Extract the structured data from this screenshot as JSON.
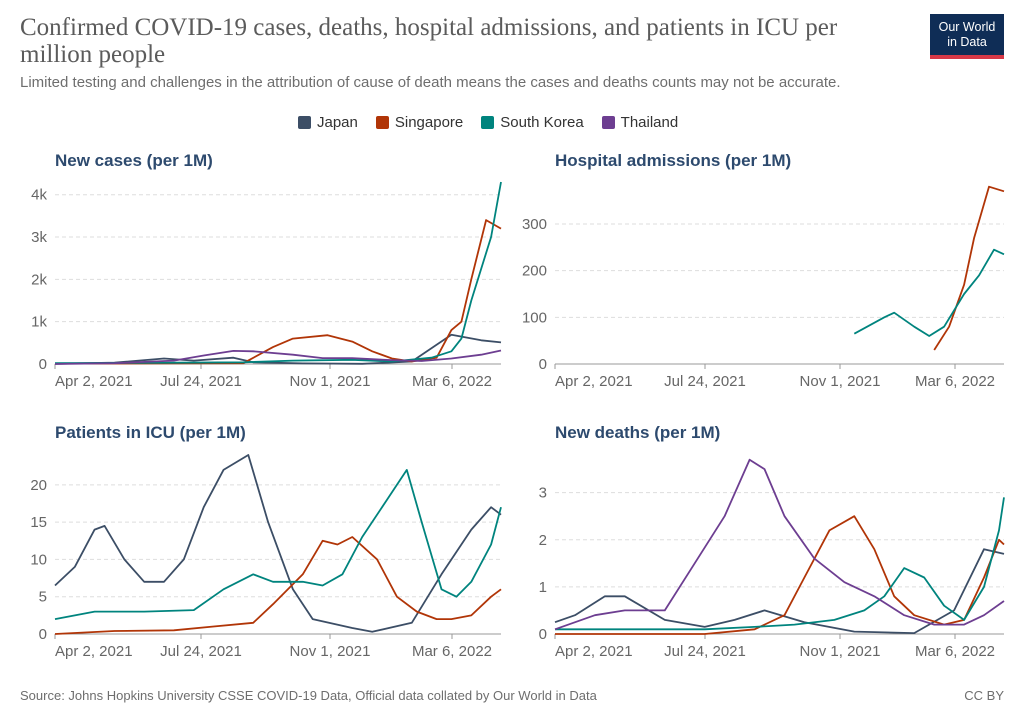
{
  "title": "Confirmed COVID-19 cases, deaths, hospital admissions, and patients in ICU per million people",
  "subtitle": "Limited testing and challenges in the attribution of cause of death means the cases and deaths counts may not be accurate.",
  "logo": {
    "line1": "Our World",
    "line2": "in Data"
  },
  "legend": [
    {
      "name": "Japan",
      "color": "#3c4e66"
    },
    {
      "name": "Singapore",
      "color": "#b13507"
    },
    {
      "name": "South Korea",
      "color": "#00847e"
    },
    {
      "name": "Thailand",
      "color": "#6d3e91"
    }
  ],
  "footer": {
    "source": "Source: Johns Hopkins University CSSE COVID-19 Data, Official data collated by Our World in Data",
    "license": "CC BY"
  },
  "chart_data": [
    {
      "type": "line",
      "title": "New cases (per 1M)",
      "x_ticks": [
        "Apr 2, 2021",
        "Jul 24, 2021",
        "Nov 1, 2021",
        "Mar 6, 2022"
      ],
      "y_ticks": [
        {
          "v": 0,
          "label": "0"
        },
        {
          "v": 1000,
          "label": "1k"
        },
        {
          "v": 2000,
          "label": "2k"
        },
        {
          "v": 3000,
          "label": "3k"
        },
        {
          "v": 4000,
          "label": "4k"
        }
      ],
      "ylim": [
        0,
        4300
      ],
      "series": [
        {
          "name": "Japan",
          "points": [
            [
              0,
              5
            ],
            [
              60,
              30
            ],
            [
              110,
              130
            ],
            [
              140,
              80
            ],
            [
              180,
              150
            ],
            [
              200,
              40
            ],
            [
              250,
              15
            ],
            [
              310,
              5
            ],
            [
              360,
              60
            ],
            [
              400,
              690
            ],
            [
              430,
              560
            ],
            [
              450,
              510
            ]
          ]
        },
        {
          "name": "Singapore",
          "points": [
            [
              0,
              10
            ],
            [
              120,
              15
            ],
            [
              190,
              20
            ],
            [
              220,
              400
            ],
            [
              240,
              600
            ],
            [
              275,
              680
            ],
            [
              300,
              530
            ],
            [
              320,
              300
            ],
            [
              340,
              130
            ],
            [
              360,
              60
            ],
            [
              385,
              150
            ],
            [
              400,
              800
            ],
            [
              410,
              1000
            ],
            [
              420,
              2000
            ],
            [
              435,
              3400
            ],
            [
              450,
              3200
            ]
          ]
        },
        {
          "name": "South Korea",
          "points": [
            [
              0,
              20
            ],
            [
              120,
              30
            ],
            [
              190,
              40
            ],
            [
              240,
              80
            ],
            [
              300,
              100
            ],
            [
              340,
              60
            ],
            [
              380,
              150
            ],
            [
              400,
              300
            ],
            [
              410,
              600
            ],
            [
              420,
              1500
            ],
            [
              440,
              3000
            ],
            [
              450,
              4300
            ]
          ]
        },
        {
          "name": "Thailand",
          "points": [
            [
              0,
              0
            ],
            [
              60,
              20
            ],
            [
              120,
              80
            ],
            [
              150,
              200
            ],
            [
              180,
              310
            ],
            [
              200,
              300
            ],
            [
              240,
              220
            ],
            [
              270,
              140
            ],
            [
              300,
              140
            ],
            [
              340,
              90
            ],
            [
              370,
              70
            ],
            [
              400,
              130
            ],
            [
              430,
              220
            ],
            [
              450,
              320
            ]
          ]
        }
      ]
    },
    {
      "type": "line",
      "title": "Hospital admissions (per 1M)",
      "x_ticks": [
        "Apr 2, 2021",
        "Jul 24, 2021",
        "Nov 1, 2021",
        "Mar 6, 2022"
      ],
      "y_ticks": [
        {
          "v": 0,
          "label": "0"
        },
        {
          "v": 100,
          "label": "100"
        },
        {
          "v": 200,
          "label": "200"
        },
        {
          "v": 300,
          "label": "300"
        }
      ],
      "ylim": [
        0,
        390
      ],
      "series": [
        {
          "name": "Singapore",
          "points": [
            [
              380,
              30
            ],
            [
              395,
              80
            ],
            [
              410,
              170
            ],
            [
              420,
              270
            ],
            [
              435,
              380
            ],
            [
              450,
              370
            ]
          ]
        },
        {
          "name": "South Korea",
          "points": [
            [
              300,
              65
            ],
            [
              330,
              100
            ],
            [
              340,
              110
            ],
            [
              360,
              80
            ],
            [
              375,
              60
            ],
            [
              390,
              80
            ],
            [
              410,
              150
            ],
            [
              425,
              190
            ],
            [
              440,
              245
            ],
            [
              450,
              235
            ]
          ]
        }
      ]
    },
    {
      "type": "line",
      "title": "Patients in ICU (per 1M)",
      "x_ticks": [
        "Apr 2, 2021",
        "Jul 24, 2021",
        "Nov 1, 2021",
        "Mar 6, 2022"
      ],
      "y_ticks": [
        {
          "v": 0,
          "label": "0"
        },
        {
          "v": 5,
          "label": "5"
        },
        {
          "v": 10,
          "label": "10"
        },
        {
          "v": 15,
          "label": "15"
        },
        {
          "v": 20,
          "label": "20"
        }
      ],
      "ylim": [
        0,
        24
      ],
      "series": [
        {
          "name": "Japan",
          "points": [
            [
              0,
              6.5
            ],
            [
              20,
              9
            ],
            [
              40,
              14
            ],
            [
              50,
              14.5
            ],
            [
              70,
              10
            ],
            [
              90,
              7
            ],
            [
              110,
              7
            ],
            [
              130,
              10
            ],
            [
              150,
              17
            ],
            [
              170,
              22
            ],
            [
              195,
              24
            ],
            [
              215,
              15
            ],
            [
              240,
              6
            ],
            [
              260,
              2
            ],
            [
              300,
              0.8
            ],
            [
              320,
              0.3
            ],
            [
              360,
              1.5
            ],
            [
              390,
              8
            ],
            [
              420,
              14
            ],
            [
              440,
              17
            ],
            [
              450,
              16
            ]
          ]
        },
        {
          "name": "Singapore",
          "points": [
            [
              0,
              0
            ],
            [
              60,
              0.4
            ],
            [
              120,
              0.5
            ],
            [
              160,
              1
            ],
            [
              200,
              1.5
            ],
            [
              220,
              4
            ],
            [
              250,
              8
            ],
            [
              270,
              12.5
            ],
            [
              285,
              12
            ],
            [
              300,
              13
            ],
            [
              325,
              10
            ],
            [
              345,
              5
            ],
            [
              365,
              3
            ],
            [
              385,
              2
            ],
            [
              400,
              2
            ],
            [
              420,
              2.5
            ],
            [
              440,
              5
            ],
            [
              450,
              6
            ]
          ]
        },
        {
          "name": "South Korea",
          "points": [
            [
              0,
              2
            ],
            [
              40,
              3
            ],
            [
              90,
              3
            ],
            [
              140,
              3.2
            ],
            [
              170,
              6
            ],
            [
              200,
              8
            ],
            [
              220,
              7
            ],
            [
              250,
              7
            ],
            [
              270,
              6.5
            ],
            [
              290,
              8
            ],
            [
              310,
              13
            ],
            [
              335,
              18
            ],
            [
              355,
              22
            ],
            [
              370,
              15
            ],
            [
              390,
              6
            ],
            [
              405,
              5
            ],
            [
              420,
              7
            ],
            [
              440,
              12
            ],
            [
              450,
              17
            ]
          ]
        }
      ]
    },
    {
      "type": "line",
      "title": "New deaths (per 1M)",
      "x_ticks": [
        "Apr 2, 2021",
        "Jul 24, 2021",
        "Nov 1, 2021",
        "Mar 6, 2022"
      ],
      "y_ticks": [
        {
          "v": 0,
          "label": "0"
        },
        {
          "v": 1,
          "label": "1"
        },
        {
          "v": 2,
          "label": "2"
        },
        {
          "v": 3,
          "label": "3"
        }
      ],
      "ylim": [
        0,
        3.8
      ],
      "series": [
        {
          "name": "Japan",
          "points": [
            [
              0,
              0.25
            ],
            [
              20,
              0.4
            ],
            [
              50,
              0.8
            ],
            [
              70,
              0.8
            ],
            [
              110,
              0.3
            ],
            [
              150,
              0.15
            ],
            [
              180,
              0.3
            ],
            [
              210,
              0.5
            ],
            [
              250,
              0.25
            ],
            [
              300,
              0.05
            ],
            [
              360,
              0.02
            ],
            [
              400,
              0.5
            ],
            [
              430,
              1.8
            ],
            [
              450,
              1.7
            ]
          ]
        },
        {
          "name": "Singapore",
          "points": [
            [
              0,
              0
            ],
            [
              150,
              0
            ],
            [
              200,
              0.1
            ],
            [
              230,
              0.4
            ],
            [
              250,
              1.2
            ],
            [
              275,
              2.2
            ],
            [
              300,
              2.5
            ],
            [
              320,
              1.8
            ],
            [
              340,
              0.8
            ],
            [
              360,
              0.4
            ],
            [
              390,
              0.2
            ],
            [
              410,
              0.3
            ],
            [
              430,
              1.2
            ],
            [
              445,
              2
            ],
            [
              450,
              1.9
            ]
          ]
        },
        {
          "name": "South Korea",
          "points": [
            [
              0,
              0.1
            ],
            [
              150,
              0.1
            ],
            [
              200,
              0.15
            ],
            [
              240,
              0.2
            ],
            [
              280,
              0.3
            ],
            [
              310,
              0.5
            ],
            [
              330,
              0.8
            ],
            [
              350,
              1.4
            ],
            [
              370,
              1.2
            ],
            [
              390,
              0.6
            ],
            [
              410,
              0.3
            ],
            [
              430,
              1
            ],
            [
              445,
              2.2
            ],
            [
              450,
              2.9
            ]
          ]
        },
        {
          "name": "Thailand",
          "points": [
            [
              0,
              0.1
            ],
            [
              40,
              0.4
            ],
            [
              70,
              0.5
            ],
            [
              110,
              0.5
            ],
            [
              140,
              1.5
            ],
            [
              170,
              2.5
            ],
            [
              195,
              3.7
            ],
            [
              210,
              3.5
            ],
            [
              230,
              2.5
            ],
            [
              260,
              1.6
            ],
            [
              290,
              1.1
            ],
            [
              320,
              0.8
            ],
            [
              350,
              0.4
            ],
            [
              380,
              0.2
            ],
            [
              410,
              0.2
            ],
            [
              430,
              0.4
            ],
            [
              450,
              0.7
            ]
          ]
        }
      ]
    }
  ]
}
